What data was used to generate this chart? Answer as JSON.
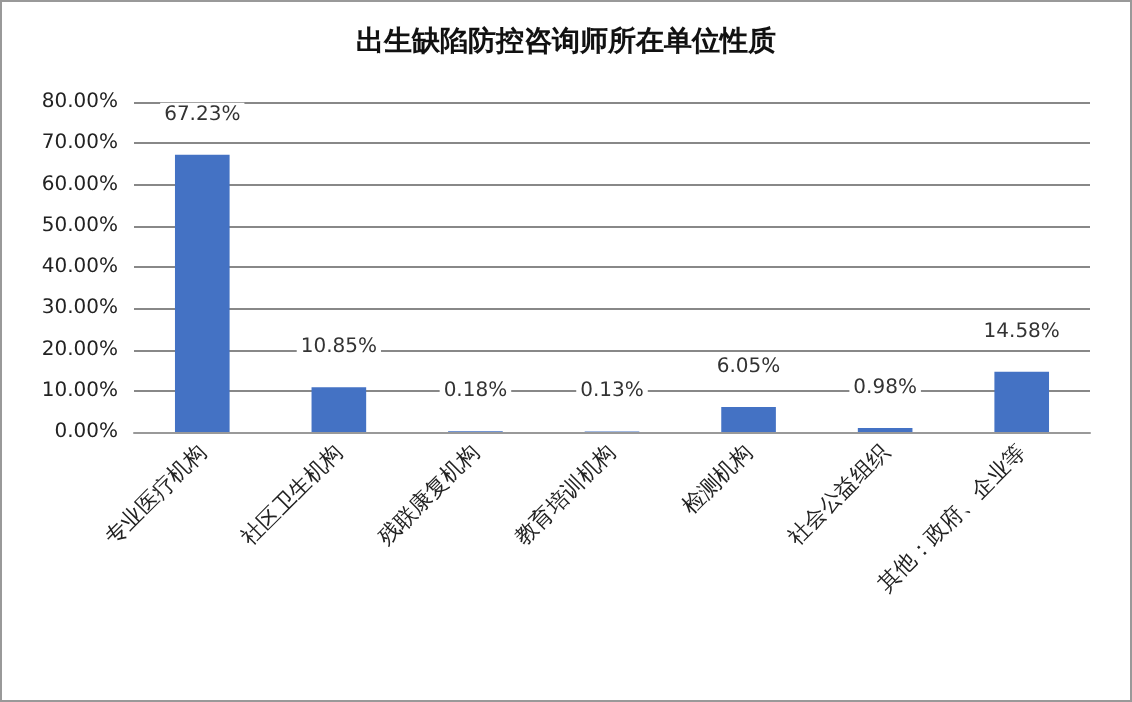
{
  "chart_data": {
    "type": "bar",
    "title": "出生缺陷防控咨询师所在单位性质",
    "categories": [
      "专业医疗机构",
      "社区卫生机构",
      "残联康复机构",
      "教育培训机构",
      "检测机构",
      "社会公益组织",
      "其他：政府、企业等"
    ],
    "values": [
      67.23,
      10.85,
      0.18,
      0.13,
      6.05,
      0.98,
      14.58
    ],
    "value_labels": [
      "67.23%",
      "10.85%",
      "0.18%",
      "0.13%",
      "6.05%",
      "0.98%",
      "14.58%"
    ],
    "color": "#4472c4",
    "ylim": [
      0,
      80
    ],
    "yticks": [
      {
        "value": 0,
        "label": "0.00%"
      },
      {
        "value": 10,
        "label": "10.00%"
      },
      {
        "value": 20,
        "label": "20.00%"
      },
      {
        "value": 30,
        "label": "30.00%"
      },
      {
        "value": 40,
        "label": "40.00%"
      },
      {
        "value": 50,
        "label": "50.00%"
      },
      {
        "value": 60,
        "label": "60.00%"
      },
      {
        "value": 70,
        "label": "70.00%"
      },
      {
        "value": 80,
        "label": "80.00%"
      }
    ],
    "grid": "y"
  }
}
